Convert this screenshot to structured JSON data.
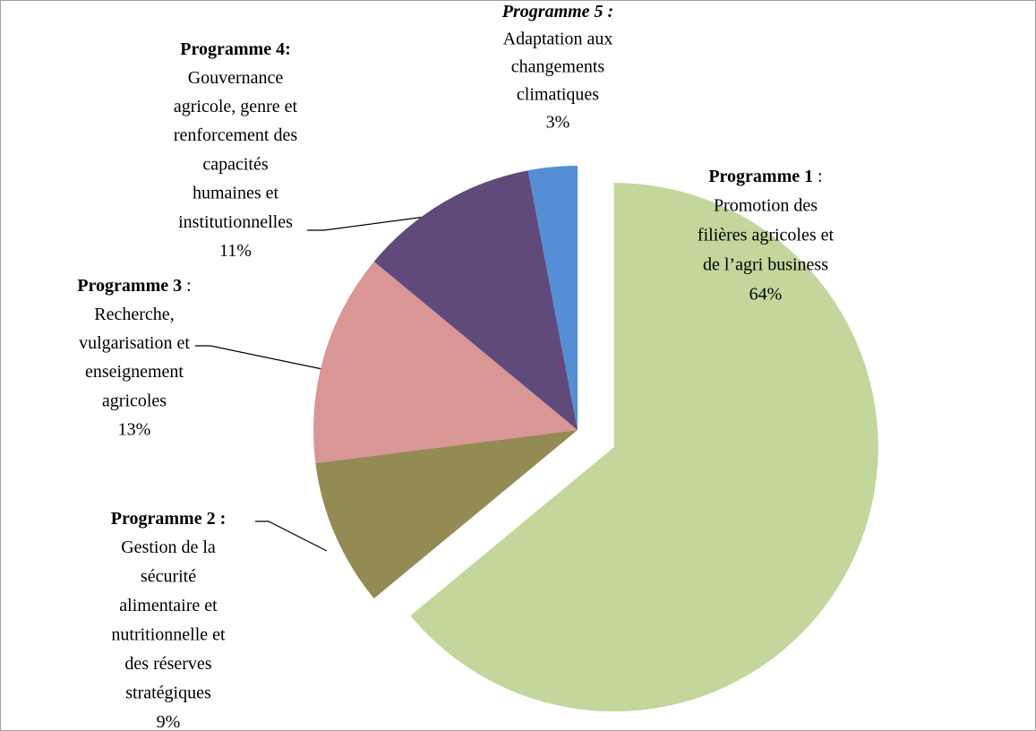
{
  "chart_data": {
    "type": "pie",
    "start_angle": 0,
    "direction": "clockwise",
    "exploded": [
      0
    ],
    "categories": [
      "Programme 1",
      "Programme 2 :",
      "Programme 3",
      "Programme 4:",
      "Programme 5 :"
    ],
    "suffixes": [
      " :",
      null,
      " :",
      null,
      null
    ],
    "title_styles": [
      "bold",
      "bold",
      "bold",
      "bold",
      "bold-italic"
    ],
    "descriptions": [
      [
        "Promotion des",
        "filières agricoles et",
        "de l’agri business"
      ],
      [
        "Gestion de la",
        "sécurité",
        "alimentaire et",
        "nutritionnelle et",
        "des réserves",
        "stratégiques"
      ],
      [
        "Recherche,",
        "vulgarisation et",
        "enseignement",
        "agricoles"
      ],
      [
        "Gouvernance",
        "agricole, genre et",
        "renforcement des",
        "capacités",
        "humaines et",
        "institutionnelles"
      ],
      [
        "Adaptation aux",
        "changements",
        "climatiques"
      ]
    ],
    "values": [
      64,
      9,
      13,
      11,
      3
    ],
    "value_labels": [
      "64%",
      "9%",
      "13%",
      "11%",
      "3%"
    ],
    "colors": [
      "#c3d69b",
      "#948a54",
      "#d99694",
      "#604a7b",
      "#558ed5"
    ]
  }
}
